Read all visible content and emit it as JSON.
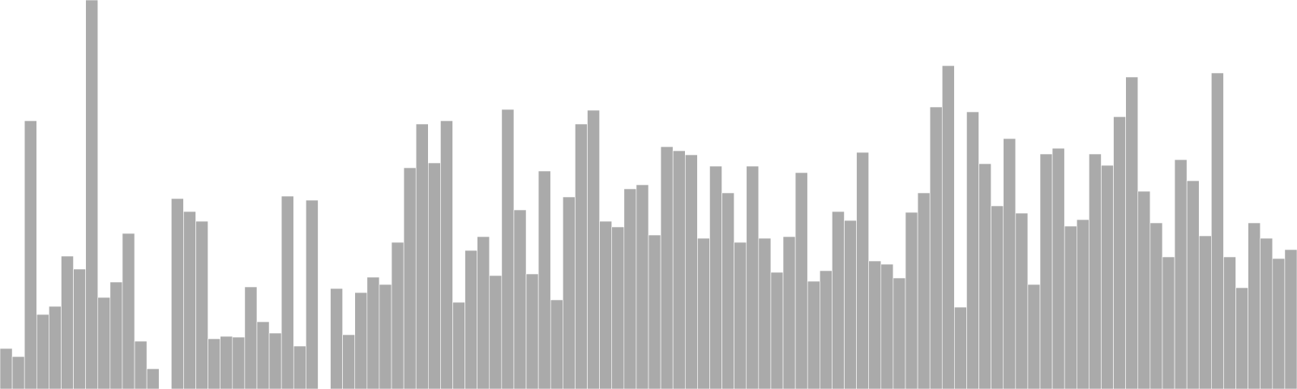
{
  "chart_data": {
    "type": "bar",
    "title": "",
    "xlabel": "",
    "ylabel": "",
    "bar_color": "#aaaaaa",
    "bar_stroke": "#ffffff",
    "ylim": [
      0,
      480
    ],
    "grid": false,
    "legend": "none",
    "values": [
      50,
      40,
      331,
      92,
      102,
      164,
      148,
      480,
      113,
      132,
      192,
      59,
      25,
      0,
      235,
      219,
      207,
      62,
      65,
      64,
      126,
      83,
      69,
      238,
      53,
      233,
      0,
      124,
      67,
      119,
      138,
      129,
      181,
      273,
      327,
      279,
      331,
      107,
      171,
      188,
      140,
      345,
      221,
      142,
      269,
      110,
      237,
      327,
      344,
      207,
      200,
      247,
      252,
      190,
      299,
      294,
      289,
      186,
      275,
      242,
      181,
      275,
      186,
      144,
      188,
      267,
      133,
      146,
      219,
      208,
      292,
      158,
      154,
      137,
      218,
      242,
      348,
      399,
      101,
      342,
      278,
      226,
      309,
      217,
      129,
      290,
      297,
      201,
      209,
      290,
      276,
      336,
      385,
      244,
      205,
      163,
      283,
      257,
      189,
      390,
      163,
      125,
      205,
      186,
      161,
      172
    ]
  }
}
